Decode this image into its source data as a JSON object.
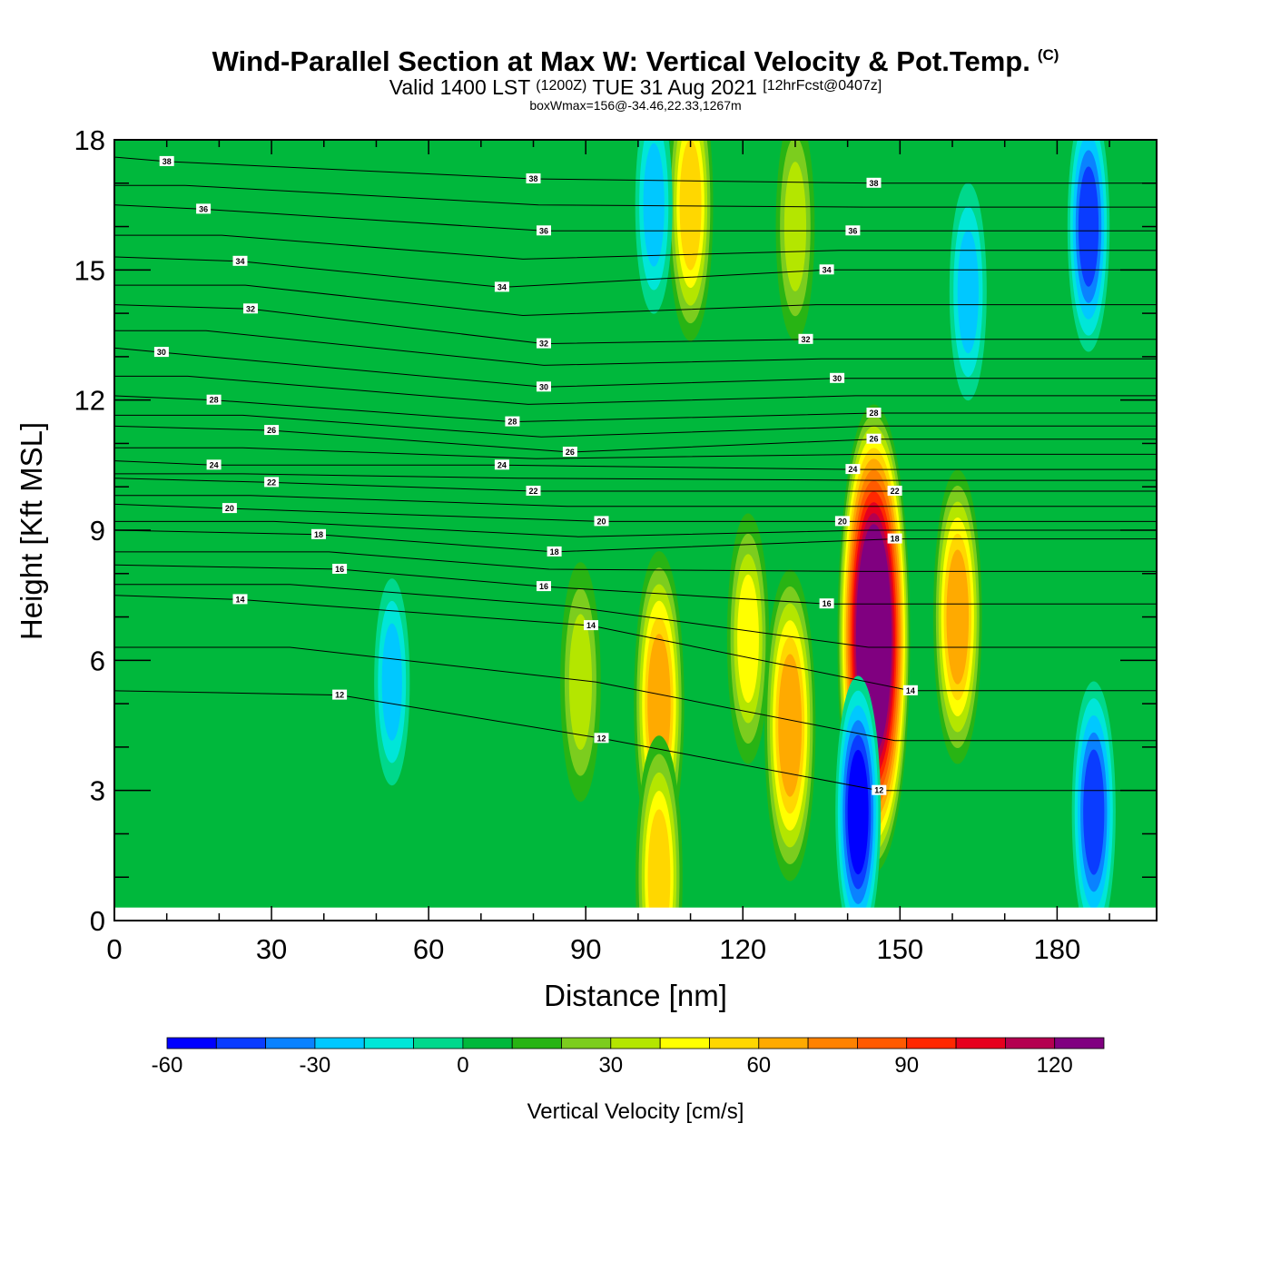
{
  "header": {
    "title": "Wind-Parallel Section at Max W: Vertical Velocity & Pot.Temp.",
    "copyright": "(C)",
    "valid_prefix": "Valid 1400 LST",
    "valid_utc": "(1200Z)",
    "valid_date": "TUE 31 Aug 2021",
    "forecast": "[12hrFcst@0407z]",
    "box_wmax": "boxWmax=156@-34.46,22.33,1267m"
  },
  "chart_data": {
    "type": "heatmap",
    "title": "Wind-Parallel Section at Max W: Vertical Velocity & Pot.Temp.",
    "xlabel": "Distance [nm]",
    "ylabel": "Height [Kft MSL]",
    "xlim": [
      0,
      199
    ],
    "ylim": [
      0,
      18
    ],
    "x_ticks": [
      0,
      30,
      60,
      90,
      120,
      150,
      180
    ],
    "y_ticks": [
      0,
      3,
      6,
      9,
      12,
      15,
      18
    ],
    "grid": false,
    "terrain_height_kft": 0.3,
    "colorbar": {
      "label": "Vertical Velocity [cm/s]",
      "levels": [
        -60,
        -50,
        -40,
        -30,
        -20,
        -10,
        0,
        10,
        20,
        30,
        40,
        50,
        60,
        70,
        80,
        90,
        100,
        110,
        120,
        130,
        140
      ],
      "tick_labels": [
        "-60",
        "-30",
        "0",
        "30",
        "60",
        "90",
        "120"
      ],
      "colors": [
        "#0000ff",
        "#0a3cff",
        "#0a82ff",
        "#00c8ff",
        "#00e6d8",
        "#00d88c",
        "#00b83c",
        "#28b414",
        "#7ccd1e",
        "#b4e600",
        "#ffff00",
        "#ffd700",
        "#ffaa00",
        "#ff8200",
        "#ff5a00",
        "#ff2800",
        "#e6001e",
        "#b40050",
        "#800080"
      ]
    },
    "vertical_velocity_cells": [
      {
        "x": 104,
        "y": 5.0,
        "w_cm_s": 65
      },
      {
        "x": 104,
        "y": 1.0,
        "w_cm_s": 55
      },
      {
        "x": 110,
        "y": 16.5,
        "w_cm_s": 50
      },
      {
        "x": 121,
        "y": 6.5,
        "w_cm_s": 40
      },
      {
        "x": 129,
        "y": 4.5,
        "w_cm_s": 68
      },
      {
        "x": 145,
        "y": 6.5,
        "w_cm_s": 140
      },
      {
        "x": 142,
        "y": 2.5,
        "w_cm_s": -50
      },
      {
        "x": 161,
        "y": 7.0,
        "w_cm_s": 60
      },
      {
        "x": 187,
        "y": 2.5,
        "w_cm_s": -45
      },
      {
        "x": 186,
        "y": 16.0,
        "w_cm_s": -40
      },
      {
        "x": 89,
        "y": 5.5,
        "w_cm_s": 35
      },
      {
        "x": 53,
        "y": 5.5,
        "w_cm_s": -20
      },
      {
        "x": 130,
        "y": 16.0,
        "w_cm_s": 30
      },
      {
        "x": 103,
        "y": 16.5,
        "w_cm_s": -25
      },
      {
        "x": 163,
        "y": 14.5,
        "w_cm_s": -25
      }
    ],
    "potential_temperature_labels": [
      {
        "x": 10,
        "y": 17.5,
        "label": "38"
      },
      {
        "x": 17,
        "y": 16.4,
        "label": "36"
      },
      {
        "x": 24,
        "y": 15.2,
        "label": "34"
      },
      {
        "x": 26,
        "y": 14.1,
        "label": "32"
      },
      {
        "x": 9,
        "y": 13.1,
        "label": "30"
      },
      {
        "x": 19,
        "y": 12.0,
        "label": "28"
      },
      {
        "x": 30,
        "y": 11.3,
        "label": "26"
      },
      {
        "x": 19,
        "y": 10.5,
        "label": "24"
      },
      {
        "x": 30,
        "y": 10.1,
        "label": "22"
      },
      {
        "x": 22,
        "y": 9.5,
        "label": "20"
      },
      {
        "x": 39,
        "y": 8.9,
        "label": "18"
      },
      {
        "x": 43,
        "y": 8.1,
        "label": "16"
      },
      {
        "x": 24,
        "y": 7.4,
        "label": "14"
      },
      {
        "x": 43,
        "y": 5.2,
        "label": "12"
      },
      {
        "x": 80,
        "y": 17.1,
        "label": "38"
      },
      {
        "x": 82,
        "y": 15.9,
        "label": "36"
      },
      {
        "x": 74,
        "y": 14.6,
        "label": "34"
      },
      {
        "x": 82,
        "y": 13.3,
        "label": "32"
      },
      {
        "x": 82,
        "y": 12.3,
        "label": "30"
      },
      {
        "x": 76,
        "y": 11.5,
        "label": "28"
      },
      {
        "x": 87,
        "y": 10.8,
        "label": "26"
      },
      {
        "x": 74,
        "y": 10.5,
        "label": "24"
      },
      {
        "x": 80,
        "y": 9.9,
        "label": "22"
      },
      {
        "x": 93,
        "y": 9.2,
        "label": "20"
      },
      {
        "x": 84,
        "y": 8.5,
        "label": "18"
      },
      {
        "x": 82,
        "y": 7.7,
        "label": "16"
      },
      {
        "x": 91,
        "y": 6.8,
        "label": "14"
      },
      {
        "x": 93,
        "y": 4.2,
        "label": "12"
      },
      {
        "x": 145,
        "y": 17.0,
        "label": "38"
      },
      {
        "x": 141,
        "y": 15.9,
        "label": "36"
      },
      {
        "x": 136,
        "y": 15.0,
        "label": "34"
      },
      {
        "x": 132,
        "y": 13.4,
        "label": "32"
      },
      {
        "x": 138,
        "y": 12.5,
        "label": "30"
      },
      {
        "x": 145,
        "y": 11.7,
        "label": "28"
      },
      {
        "x": 145,
        "y": 11.1,
        "label": "26"
      },
      {
        "x": 141,
        "y": 10.4,
        "label": "24"
      },
      {
        "x": 149,
        "y": 9.9,
        "label": "22"
      },
      {
        "x": 139,
        "y": 9.2,
        "label": "20"
      },
      {
        "x": 149,
        "y": 8.8,
        "label": "18"
      },
      {
        "x": 136,
        "y": 7.3,
        "label": "16"
      },
      {
        "x": 152,
        "y": 5.3,
        "label": "14"
      },
      {
        "x": 146,
        "y": 3.0,
        "label": "12"
      }
    ]
  }
}
